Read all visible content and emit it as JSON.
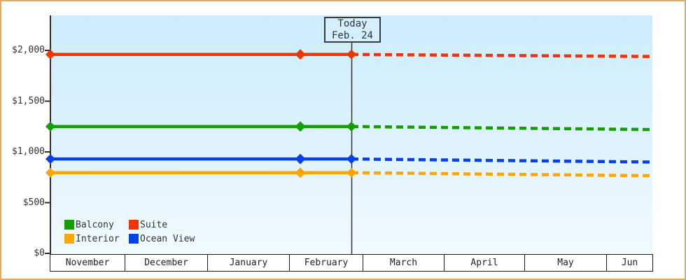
{
  "window": {
    "border_color": "#E8A85F",
    "background_color": "#FFFFFF"
  },
  "chart_data": {
    "type": "line",
    "title": "",
    "xlabel": "",
    "ylabel": "",
    "x_axis": {
      "categories": [
        "November",
        "December",
        "January",
        "February",
        "March",
        "April",
        "May",
        "Jun"
      ],
      "style": "boxed-month-strip"
    },
    "y_axis": {
      "ticks": [
        {
          "label": "$0",
          "value": 0
        },
        {
          "label": "$500",
          "value": 500
        },
        {
          "label": "$1,000",
          "value": 1000
        },
        {
          "label": "$1,500",
          "value": 1500
        },
        {
          "label": "$2,000",
          "value": 2000
        }
      ],
      "range": [
        0,
        2350
      ],
      "grid": false
    },
    "today_marker": {
      "line1": "Today",
      "line2": "Feb. 24",
      "box_fill": "#D3F0FC",
      "box_border": "#3A3A3A",
      "line_color": "#333333"
    },
    "series": [
      {
        "name": "Suite",
        "color": "#F23400",
        "history_value": 1960,
        "today_value": 1960,
        "projected_end_value": 1940,
        "style_before_today": "solid",
        "style_after_today": "dashed"
      },
      {
        "name": "Balcony",
        "color": "#12A000",
        "history_value": 1250,
        "today_value": 1250,
        "projected_end_value": 1220,
        "style_before_today": "solid",
        "style_after_today": "dashed"
      },
      {
        "name": "Ocean View",
        "color": "#0540EE",
        "history_value": 930,
        "today_value": 930,
        "projected_end_value": 900,
        "style_before_today": "solid",
        "style_after_today": "dashed"
      },
      {
        "name": "Interior",
        "color": "#FFA500",
        "history_value": 795,
        "today_value": 795,
        "projected_end_value": 765,
        "style_before_today": "solid",
        "style_after_today": "dashed"
      }
    ],
    "legend": {
      "position": "bottom-left",
      "items": [
        "Balcony",
        "Suite",
        "Interior",
        "Ocean View"
      ]
    },
    "plot_background": {
      "top": "#CBEDFB",
      "bottom": "#F1FAFE"
    },
    "axis_color": "#2F2F2F"
  }
}
